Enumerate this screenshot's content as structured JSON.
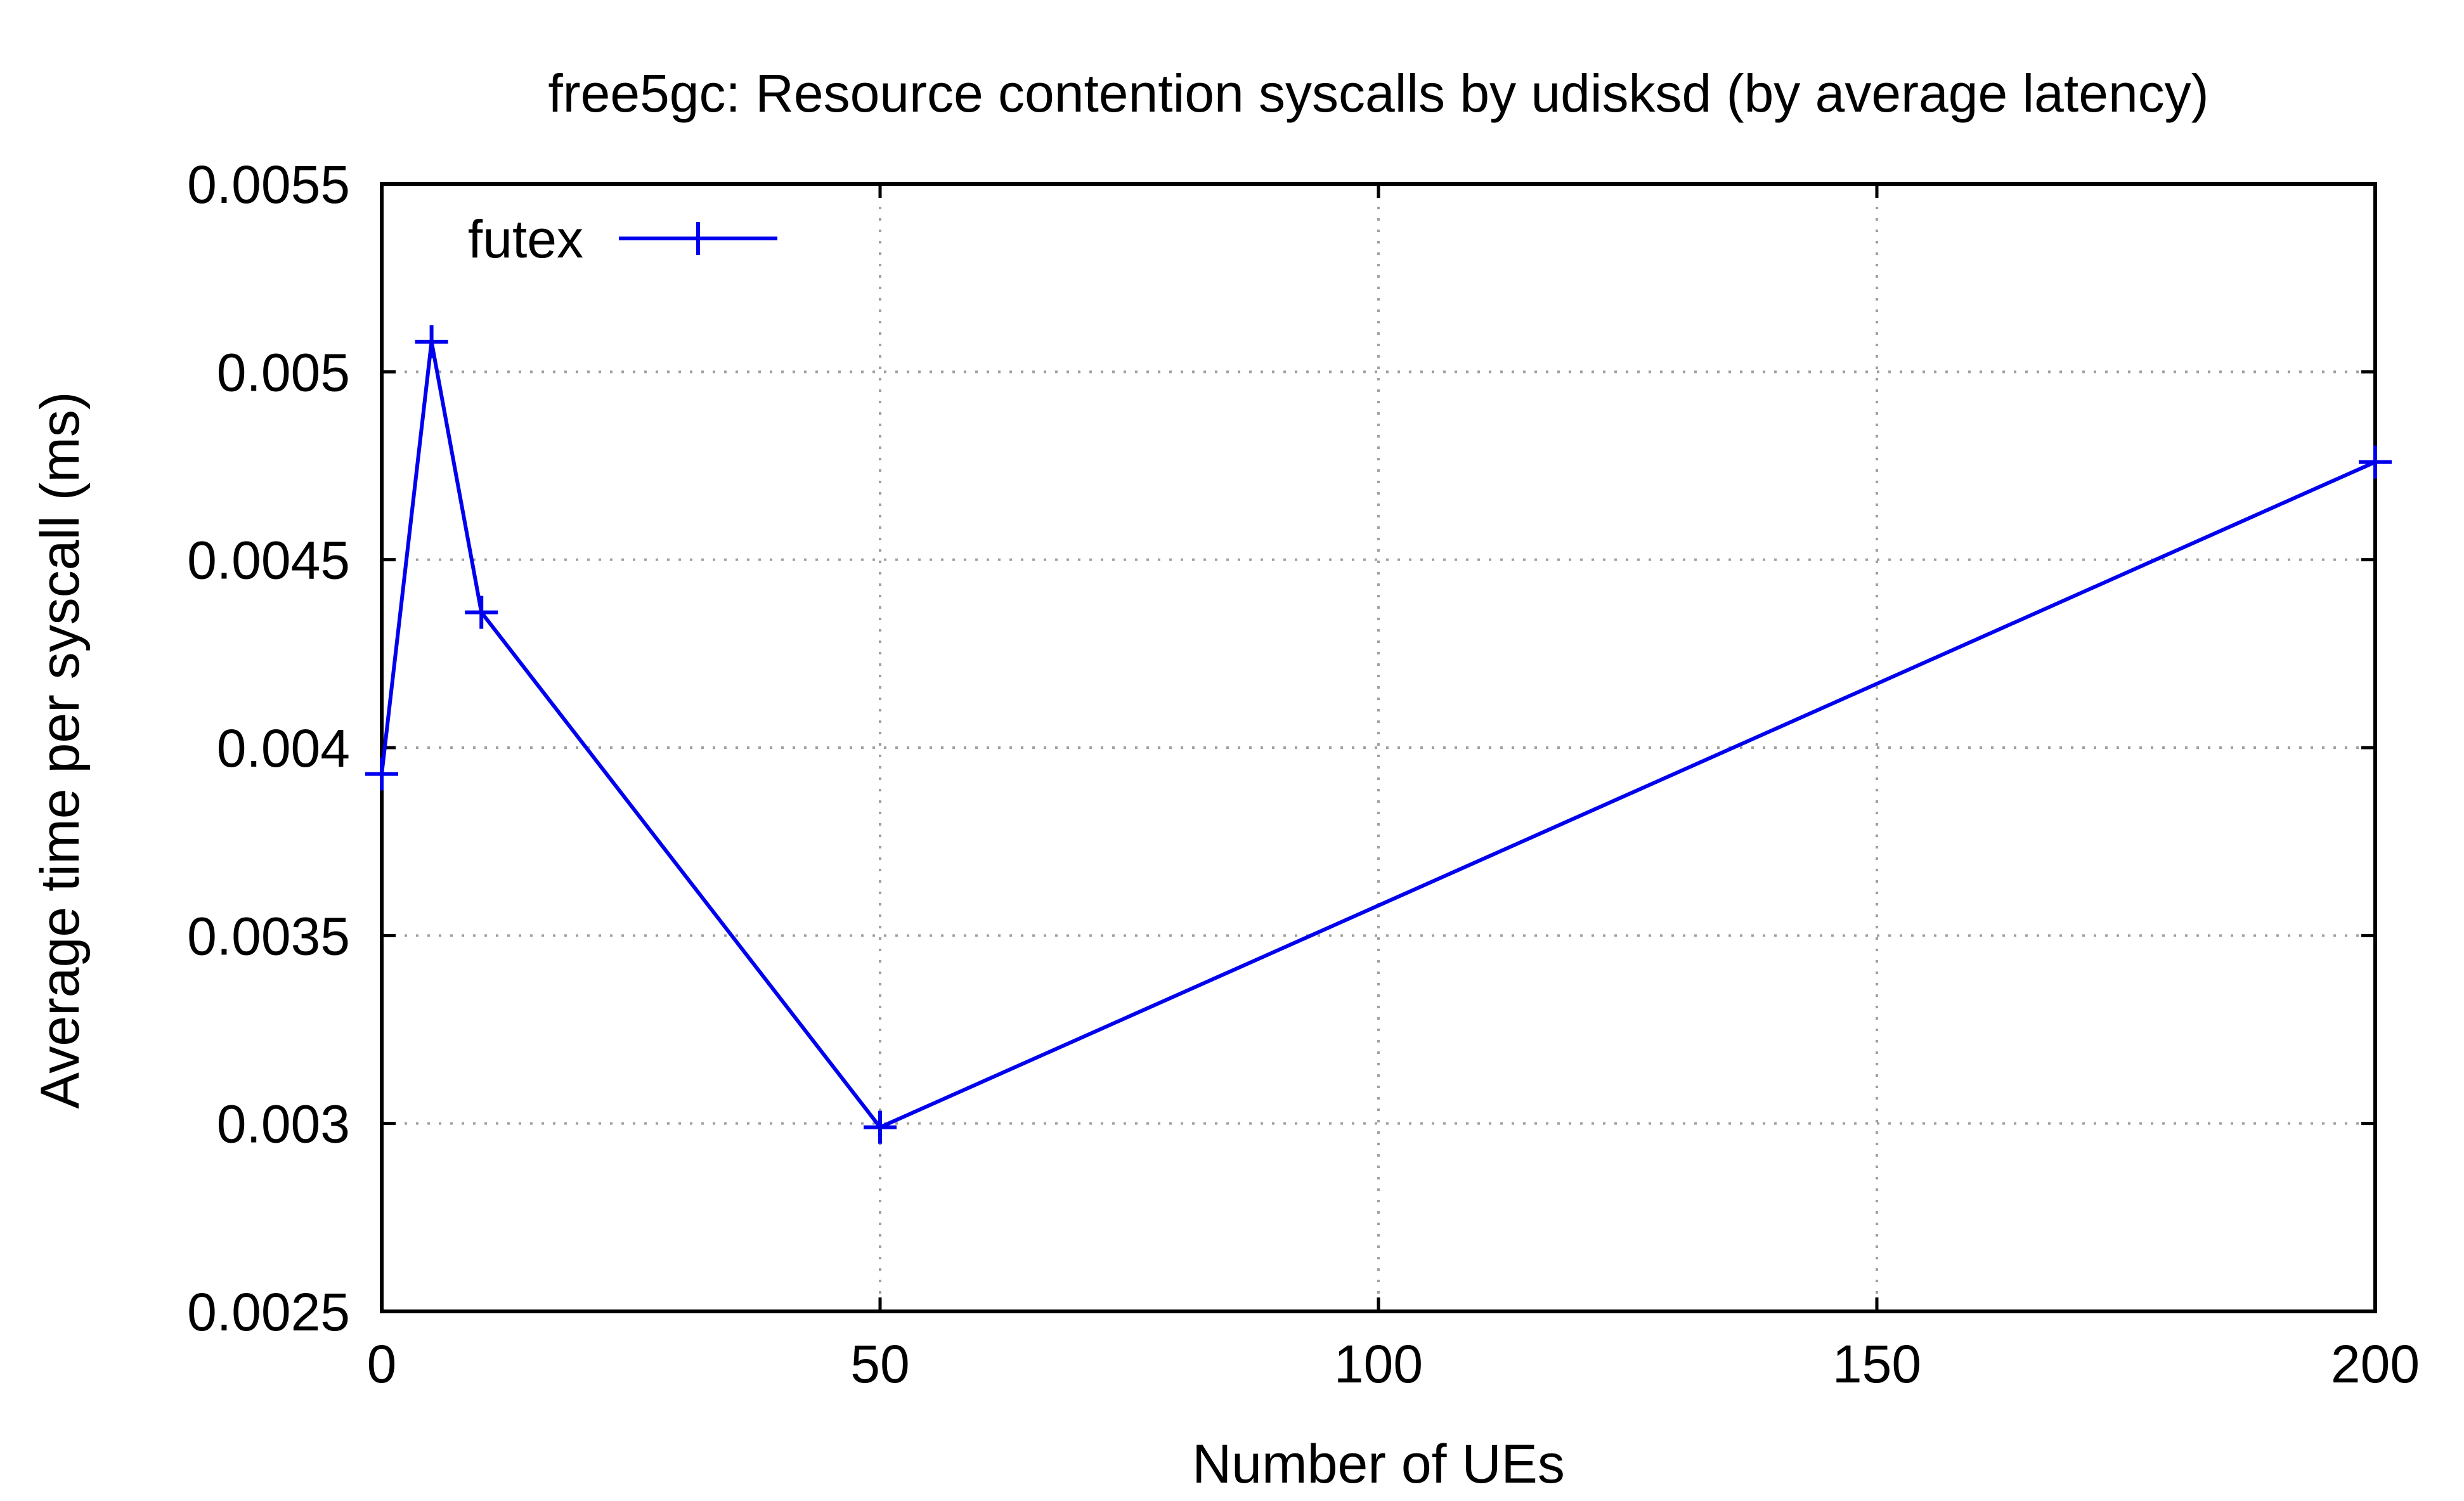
{
  "chart_data": {
    "type": "line",
    "title": "free5gc: Resource contention syscalls by udisksd (by average latency)",
    "xlabel": "Number of UEs",
    "ylabel": "Average time per syscall (ms)",
    "xlim": [
      0,
      200
    ],
    "ylim": [
      0.0025,
      0.0055
    ],
    "xticks": [
      0,
      50,
      100,
      150,
      200
    ],
    "xtick_labels": [
      "0",
      "50",
      "100",
      "150",
      "200"
    ],
    "yticks": [
      0.0025,
      0.003,
      0.0035,
      0.004,
      0.0045,
      0.005,
      0.0055
    ],
    "ytick_labels": [
      "0.0025",
      "0.003",
      "0.0035",
      "0.004",
      "0.0045",
      "0.005",
      "0.0055"
    ],
    "grid": true,
    "legend_position": "top-left",
    "series": [
      {
        "name": "futex",
        "color": "#0000ee",
        "marker": "plus",
        "x": [
          0,
          5,
          10,
          50,
          200
        ],
        "y": [
          0.00393,
          0.00508,
          0.00436,
          0.00299,
          0.00476
        ]
      }
    ]
  }
}
